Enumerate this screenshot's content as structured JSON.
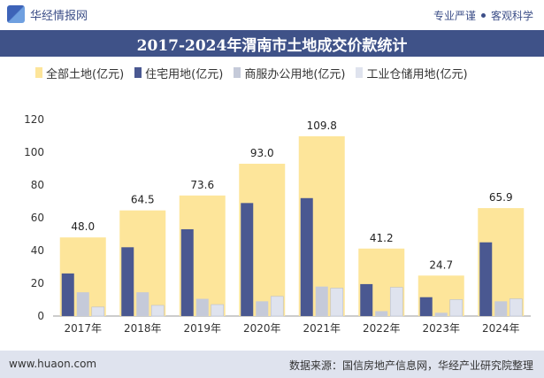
{
  "header": {
    "brand": "华经情报网",
    "slogan_left": "专业严谨",
    "slogan_right": "客观科学"
  },
  "colors": {
    "total": "#fde59a",
    "residential": "#4a5891",
    "commercial": "#c5cad9",
    "industrial": "#dfe3ee",
    "title_bg": "#3f5288"
  },
  "chart_data": {
    "type": "bar",
    "title": "2017-2024年渭南市土地成交价款统计",
    "categories": [
      "2017年",
      "2018年",
      "2019年",
      "2020年",
      "2021年",
      "2022年",
      "2023年",
      "2024年"
    ],
    "series": [
      {
        "name": "全部土地(亿元)",
        "values": [
          48.0,
          64.5,
          73.6,
          93.0,
          109.8,
          41.2,
          24.7,
          65.9
        ]
      },
      {
        "name": "住宅用地(亿元)",
        "values": [
          26,
          42,
          53,
          69,
          72,
          19.5,
          11.5,
          45
        ]
      },
      {
        "name": "商服办公用地(亿元)",
        "values": [
          14.5,
          14.5,
          10.5,
          9,
          18,
          3,
          2,
          9
        ]
      },
      {
        "name": "工业仓储用地(亿元)",
        "values": [
          5.5,
          6.5,
          7,
          12,
          17,
          17.5,
          10,
          10.5
        ]
      }
    ],
    "total_labels": [
      "48.0",
      "64.5",
      "73.6",
      "93.0",
      "109.8",
      "41.2",
      "24.7",
      "65.9"
    ],
    "ylim": [
      0,
      120
    ],
    "yticks": [
      "0",
      "20",
      "40",
      "60",
      "80",
      "100",
      "120"
    ],
    "legend_position": "top"
  },
  "footer": {
    "website": "www.huaon.com",
    "source": "数据来源：国信房地产信息网，华经产业研究院整理"
  }
}
